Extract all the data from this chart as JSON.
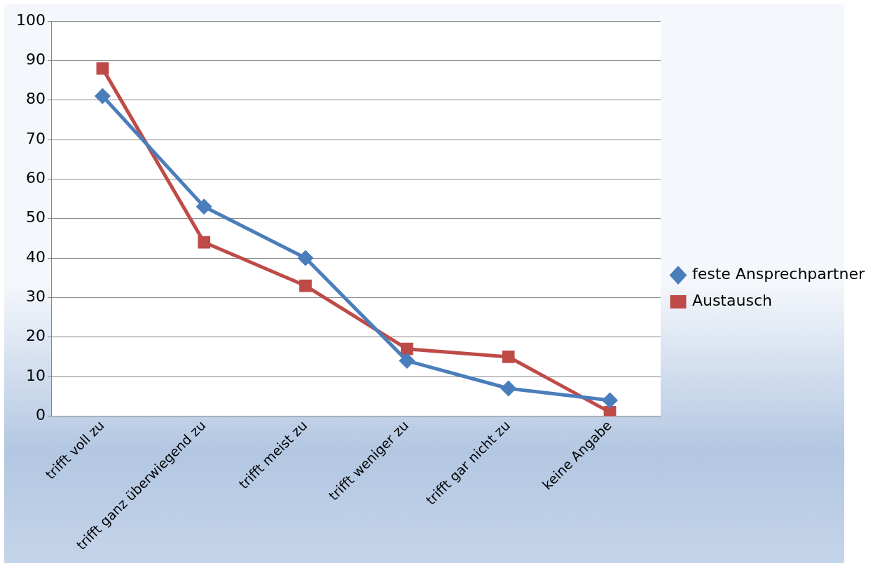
{
  "chart_data": {
    "type": "line",
    "categories": [
      "trifft voll zu",
      "trifft ganz überwiegend zu",
      "trifft meist zu",
      "trifft weniger zu",
      "trifft gar nicht zu",
      "keine Angabe"
    ],
    "series": [
      {
        "name": "feste Ansprechpartner",
        "color": "#4a7ebb",
        "marker": "diamond",
        "values": [
          81,
          53,
          40,
          14,
          7,
          4
        ]
      },
      {
        "name": "Austausch",
        "color": "#be4b48",
        "marker": "square",
        "values": [
          88,
          44,
          33,
          17,
          15,
          1
        ]
      }
    ],
    "ylim": [
      0,
      100
    ],
    "yticks": [
      0,
      10,
      20,
      30,
      40,
      50,
      60,
      70,
      80,
      90,
      100
    ],
    "grid": "y",
    "legend": "right",
    "line_style": "solid"
  }
}
